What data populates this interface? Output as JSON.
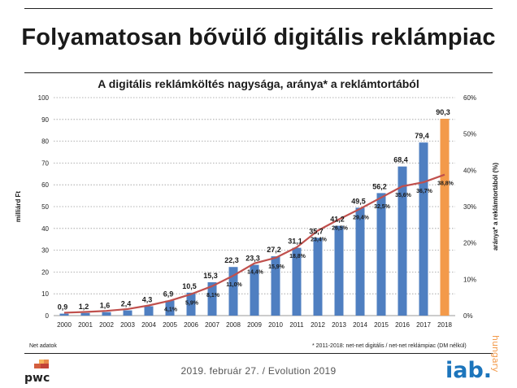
{
  "slide": {
    "title": "Folyamatosan bővülő digitális reklámpiac",
    "footer_date": "2019. február 27. / Evolution 2019",
    "note_left": "Net adatok",
    "note_right": "* 2011-2018: net-net digitális / net-net reklámpiac (DM nélkül)"
  },
  "logos": {
    "pwc": "pwc",
    "iab_main": "iab.",
    "iab_side": "hungary"
  },
  "colors": {
    "bar": "#4f7fc1",
    "bar_highlight": "#f39a4a",
    "line": "#c0504d",
    "grid": "#9a9a9a"
  },
  "chart_data": {
    "type": "bar",
    "title": "A digitális reklámköltés nagysága, aránya* a reklámtortából",
    "ylabel": "milliárd Ft",
    "y2label": "aránya* a reklámtortából (%)",
    "ylim": [
      0,
      100
    ],
    "y2lim": [
      0,
      60
    ],
    "yticks": [
      "0",
      "10",
      "20",
      "30",
      "40",
      "50",
      "60",
      "70",
      "80",
      "90",
      "100"
    ],
    "y2ticks": [
      "0%",
      "10%",
      "20%",
      "30%",
      "40%",
      "50%",
      "60%"
    ],
    "grid": true,
    "categories": [
      "2000",
      "2001",
      "2002",
      "2003",
      "2004",
      "2005",
      "2006",
      "2007",
      "2008",
      "2009",
      "2010",
      "2011",
      "2012",
      "2013",
      "2014",
      "2015",
      "2016",
      "2017",
      "2018"
    ],
    "values": [
      0.9,
      1.2,
      1.6,
      2.4,
      4.3,
      6.9,
      10.5,
      15.3,
      22.3,
      23.3,
      27.2,
      31.1,
      35.7,
      41.2,
      49.5,
      56.2,
      68.4,
      79.4,
      90.3
    ],
    "value_labels": [
      "0,9",
      "1,2",
      "1,6",
      "2,4",
      "4,3",
      "6,9",
      "10,5",
      "15,3",
      "22,3",
      "23,3",
      "27,2",
      "31,1",
      "35,7",
      "41,2",
      "49,5",
      "56,2",
      "68,4",
      "79,4",
      "90,3"
    ],
    "highlight_index": 18,
    "share_series": {
      "values": [
        0.8,
        1.0,
        1.3,
        1.8,
        2.8,
        4.1,
        5.9,
        8.1,
        11.0,
        14.4,
        15.9,
        18.8,
        23.4,
        26.5,
        29.4,
        32.5,
        35.6,
        36.7,
        38.8
      ],
      "labels": [
        "",
        "",
        "",
        "",
        "",
        "4,1%",
        "5,9%",
        "8,1%",
        "11,0%",
        "14,4%",
        "15,9%",
        "18,8%",
        "23,4%",
        "26,5%",
        "29,4%",
        "32,5%",
        "35,6%",
        "36,7%",
        "38,8%"
      ]
    }
  }
}
